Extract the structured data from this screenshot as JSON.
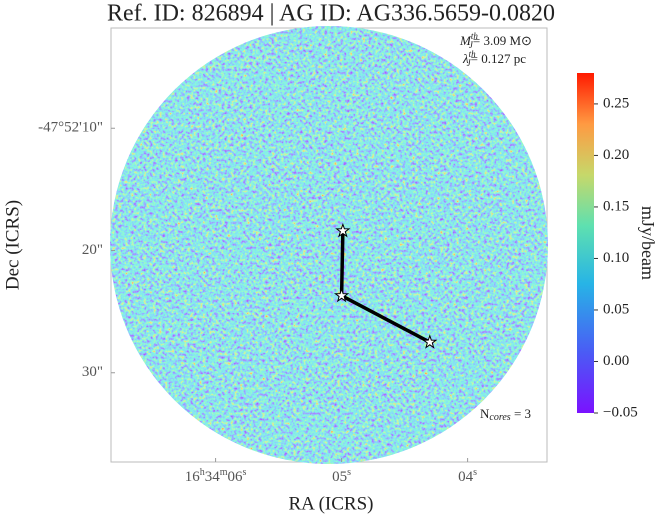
{
  "chart_data": {
    "type": "image",
    "title": "Ref. ID: 826894 | AG ID: AG336.5659-0.0820",
    "xlabel": "RA (ICRS)",
    "ylabel": "Dec (ICRS)",
    "colorbar_label": "mJy/beam",
    "xlim": [
      6.83,
      3.37
    ],
    "ylim": [
      1.8,
      37.3
    ],
    "xticks": [
      {
        "value": 6,
        "label": "16h34m06s"
      },
      {
        "value": 5,
        "label": "05s"
      },
      {
        "value": 4,
        "label": "04s"
      }
    ],
    "yticks": [
      {
        "value": 10,
        "label": "-47°52'10\""
      },
      {
        "value": 20,
        "label": "20\""
      },
      {
        "value": 30,
        "label": "30\""
      }
    ],
    "clim": [
      -0.05,
      0.28
    ],
    "cticks": [
      {
        "value": -0.05,
        "label": "−0.05"
      },
      {
        "value": 0,
        "label": "0.00"
      },
      {
        "value": 0.05,
        "label": "0.05"
      },
      {
        "value": 0.1,
        "label": "0.10"
      },
      {
        "value": 0.15,
        "label": "0.15"
      },
      {
        "value": 0.2,
        "label": "0.20"
      },
      {
        "value": 0.25,
        "label": "0.25"
      }
    ],
    "cores": {
      "x": [
        4.99,
        5.0,
        4.3
      ],
      "y": [
        18.4,
        23.7,
        27.5
      ]
    },
    "annotations": [
      {
        "symbol": "M",
        "sub": "J",
        "sup": "th",
        "text": "= 3.09 M⊙"
      },
      {
        "symbol": "λ",
        "sub": "J",
        "sup": "th",
        "text": "= 0.127 pc"
      },
      {
        "symbol": "N",
        "sub": "cores",
        "text": " = 3"
      }
    ]
  }
}
